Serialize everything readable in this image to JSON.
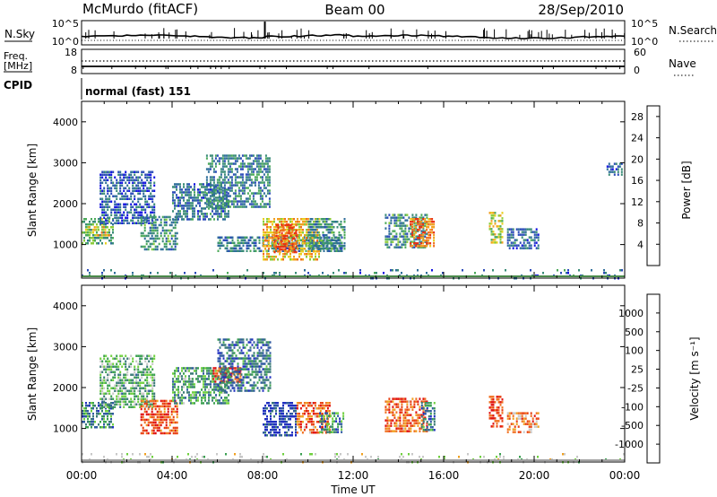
{
  "header": {
    "station": "McMurdo (fitACF)",
    "beam": "Beam 00",
    "date": "28/Sep/2010"
  },
  "strip": {
    "nsky_label": "N.Sky",
    "nsky_ticks": [
      "10^5",
      "10^0"
    ],
    "nsearch_label": "N.Search",
    "nsearch_ticks": [
      "10^5",
      "10^0"
    ],
    "freq_label_1": "Freq.",
    "freq_label_2": "[MHz]",
    "freq_ticks": [
      "18",
      "8"
    ],
    "nave_label": "Nave",
    "nave_ticks": [
      "60",
      "0"
    ],
    "cpid_label": "CPID",
    "cpid_value": "normal (fast) 151"
  },
  "chart_data": [
    {
      "type": "heatmap",
      "title": "",
      "quantity": "Power",
      "xlabel": "",
      "ylabel": "Slant Range [km]",
      "xlim_hours": [
        0,
        24
      ],
      "ylim": [
        180,
        4500
      ],
      "yticks": [
        "1000",
        "2000",
        "3000",
        "4000"
      ],
      "xticks": [
        "00:00",
        "04:00",
        "08:00",
        "12:00",
        "16:00",
        "20:00",
        "00:00"
      ],
      "colorbar": {
        "label": "Power [dB]",
        "range": [
          0,
          30
        ],
        "ticks": [
          "4",
          "8",
          "12",
          "16",
          "20",
          "24",
          "28"
        ],
        "colors": [
          "#1010e0",
          "#2a4ab8",
          "#2f6e9a",
          "#3a8c78",
          "#4caa5a",
          "#8ccc3a",
          "#e8d020",
          "#f0a020",
          "#f07020",
          "#e83010"
        ]
      },
      "echo_regions": [
        {
          "t": [
            0.0,
            1.4
          ],
          "r": [
            1050,
            1650
          ],
          "level": 0.45
        },
        {
          "t": [
            0.3,
            1.2
          ],
          "r": [
            1200,
            1450
          ],
          "level": 0.7
        },
        {
          "t": [
            0.8,
            3.2
          ],
          "r": [
            1500,
            2800
          ],
          "level": 0.2
        },
        {
          "t": [
            2.6,
            4.2
          ],
          "r": [
            900,
            1700
          ],
          "level": 0.35
        },
        {
          "t": [
            4.0,
            6.5
          ],
          "r": [
            1600,
            2500
          ],
          "level": 0.25
        },
        {
          "t": [
            5.5,
            8.3
          ],
          "r": [
            1900,
            3200
          ],
          "level": 0.3
        },
        {
          "t": [
            6.0,
            11.5
          ],
          "r": [
            850,
            1200
          ],
          "level": 0.3
        },
        {
          "t": [
            8.0,
            10.5
          ],
          "r": [
            650,
            1650
          ],
          "level": 0.7
        },
        {
          "t": [
            8.5,
            9.5
          ],
          "r": [
            800,
            1500
          ],
          "level": 0.95
        },
        {
          "t": [
            10.0,
            11.6
          ],
          "r": [
            900,
            1650
          ],
          "level": 0.35
        },
        {
          "t": [
            13.4,
            15.3
          ],
          "r": [
            900,
            1750
          ],
          "level": 0.35
        },
        {
          "t": [
            14.5,
            15.6
          ],
          "r": [
            950,
            1650
          ],
          "level": 0.85
        },
        {
          "t": [
            18.0,
            18.6
          ],
          "r": [
            1050,
            1800
          ],
          "level": 0.6
        },
        {
          "t": [
            18.8,
            20.2
          ],
          "r": [
            900,
            1400
          ],
          "level": 0.25
        },
        {
          "t": [
            23.2,
            23.9
          ],
          "r": [
            2700,
            3000
          ],
          "level": 0.2
        },
        {
          "t": [
            0.0,
            24.0
          ],
          "r": [
            180,
            400
          ],
          "level": 0.25
        }
      ]
    },
    {
      "type": "heatmap",
      "title": "",
      "quantity": "Velocity",
      "xlabel": "Time UT",
      "ylabel": "Slant Range [km]",
      "xlim_hours": [
        0,
        24
      ],
      "ylim": [
        180,
        4500
      ],
      "yticks": [
        "1000",
        "2000",
        "3000",
        "4000"
      ],
      "xticks": [
        "00:00",
        "04:00",
        "08:00",
        "12:00",
        "16:00",
        "20:00",
        "00:00"
      ],
      "colorbar": {
        "label": "Velocity [m s⁻¹]",
        "ticks": [
          "1000",
          "500",
          "100",
          "25",
          "-25",
          "-100",
          "-500",
          "-1000"
        ],
        "colors": [
          "#2030c0",
          "#2f5aa0",
          "#3a7a78",
          "#3aa050",
          "#70d040",
          "#c8c8c8",
          "#c8c8c8",
          "#f0a020",
          "#f07020",
          "#e84010",
          "#e01010"
        ]
      },
      "echo_regions": [
        {
          "t": [
            0.0,
            1.4
          ],
          "r": [
            1050,
            1650
          ],
          "level": 0.25
        },
        {
          "t": [
            0.8,
            3.2
          ],
          "r": [
            1500,
            2800
          ],
          "level": 0.35
        },
        {
          "t": [
            2.6,
            4.2
          ],
          "r": [
            900,
            1700
          ],
          "level": 0.85
        },
        {
          "t": [
            4.0,
            6.5
          ],
          "r": [
            1600,
            2500
          ],
          "level": 0.3
        },
        {
          "t": [
            5.8,
            7.0
          ],
          "r": [
            2150,
            2500
          ],
          "level": 0.85
        },
        {
          "t": [
            6.0,
            8.3
          ],
          "r": [
            1900,
            3200
          ],
          "level": 0.2
        },
        {
          "t": [
            8.0,
            9.5
          ],
          "r": [
            800,
            1650
          ],
          "level": 0.05
        },
        {
          "t": [
            9.5,
            11.0
          ],
          "r": [
            900,
            1650
          ],
          "level": 0.8
        },
        {
          "t": [
            10.5,
            11.6
          ],
          "r": [
            900,
            1400
          ],
          "level": 0.25
        },
        {
          "t": [
            13.4,
            15.3
          ],
          "r": [
            900,
            1750
          ],
          "level": 0.8
        },
        {
          "t": [
            15.0,
            15.6
          ],
          "r": [
            950,
            1650
          ],
          "level": 0.2
        },
        {
          "t": [
            18.0,
            18.6
          ],
          "r": [
            1050,
            1800
          ],
          "level": 0.9
        },
        {
          "t": [
            18.8,
            20.2
          ],
          "r": [
            900,
            1400
          ],
          "level": 0.75
        },
        {
          "t": [
            0.0,
            24.0
          ],
          "r": [
            180,
            400
          ],
          "level": 0.5
        }
      ]
    }
  ]
}
